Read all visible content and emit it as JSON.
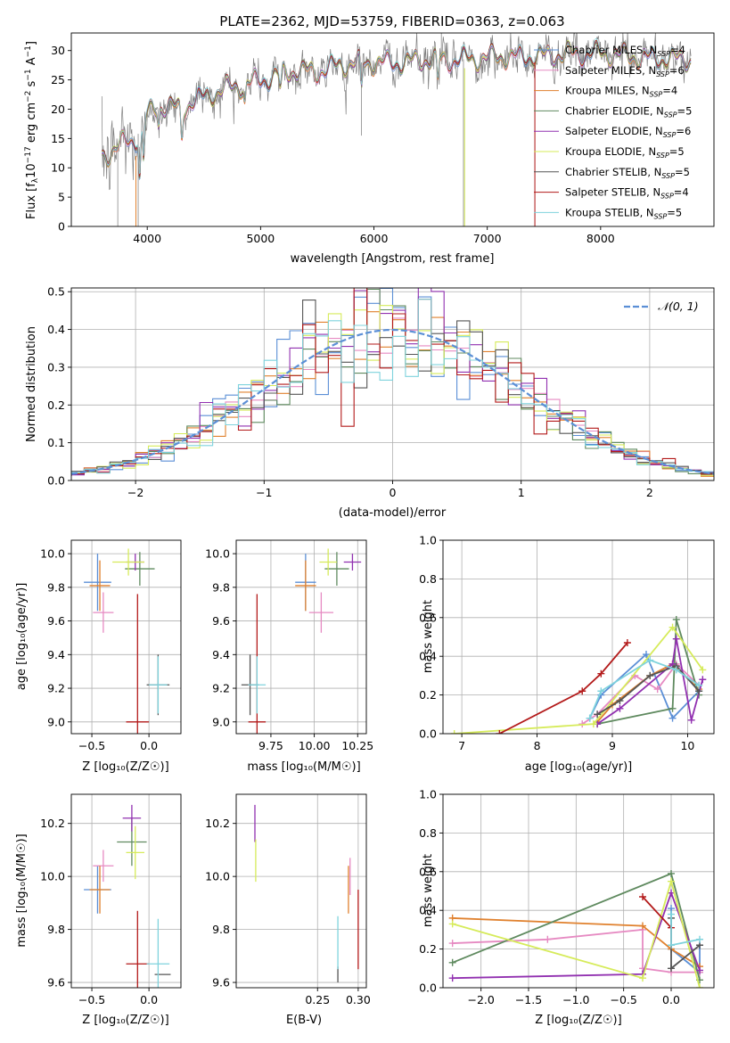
{
  "figure": {
    "title": "PLATE=2362, MJD=53759, FIBERID=0363, z=0.063"
  },
  "colors": {
    "Chabrier MILES": "#5b8fd6",
    "Salpeter MILES": "#e68ac2",
    "Kroupa MILES": "#e0812e",
    "Chabrier ELODIE": "#5f8a5f",
    "Salpeter ELODIE": "#9130b0",
    "Kroupa ELODIE": "#d6eb5a",
    "Chabrier STELIB": "#555555",
    "Salpeter STELIB": "#b31a1a",
    "Kroupa STELIB": "#7fd3dd",
    "data_spectrum": "#808080",
    "normal_curve": "#5b8fd6"
  },
  "panels": {
    "spectrum": {
      "xlabel": "wavelength [Angstrom, rest frame]",
      "ylabel_pre": "Flux [f",
      "ylabel_sub": "λ",
      "ylabel_mid": "10",
      "ylabel_sup1": "−17",
      "ylabel_post": " erg cm",
      "ylabel_sup2": "−2",
      "ylabel_s": " s",
      "ylabel_sup3": "−1",
      "ylabel_A": " A",
      "ylabel_sup4": "−1",
      "ylabel_end": "]"
    },
    "residuals": {
      "xlabel": "(data-model)/error",
      "ylabel": "Normed distribution",
      "legend": "𝒩(0, 1)"
    },
    "age_Z": {
      "xlabel": "Z [log₁₀(Z/Z☉)]",
      "ylabel": "age  [log₁₀(age/yr)]"
    },
    "age_mass": {
      "xlabel": "mass [log₁₀(M/M☉)]"
    },
    "weight_age": {
      "xlabel": "age  [log₁₀(age/yr)]",
      "ylabel": "mass weight"
    },
    "mass_Z": {
      "xlabel": "Z [log₁₀(Z/Z☉)]",
      "ylabel": "mass [log₁₀(M/M☉)]"
    },
    "mass_ebv": {
      "xlabel": "E(B-V)"
    },
    "weight_Z": {
      "xlabel": "Z [log₁₀(Z/Z☉)]",
      "ylabel": "mass weight"
    }
  },
  "legend_entries": [
    {
      "name": "Chabrier MILES",
      "n": "4"
    },
    {
      "name": "Salpeter MILES",
      "n": "6"
    },
    {
      "name": "Kroupa MILES",
      "n": "4"
    },
    {
      "name": "Chabrier ELODIE",
      "n": "5"
    },
    {
      "name": "Salpeter ELODIE",
      "n": "6"
    },
    {
      "name": "Kroupa ELODIE",
      "n": "5"
    },
    {
      "name": "Chabrier STELIB",
      "n": "5"
    },
    {
      "name": "Salpeter STELIB",
      "n": "4"
    },
    {
      "name": "Kroupa STELIB",
      "n": "5"
    }
  ],
  "chart_data": [
    {
      "type": "line",
      "title": "PLATE=2362, MJD=53759, FIBERID=0363, z=0.063",
      "xlabel": "wavelength [Angstrom, rest frame]",
      "ylabel": "Flux [f_λ 10^-17 erg cm^-2 s^-1 A^-1]",
      "xlim": [
        3330,
        9000
      ],
      "ylim": [
        0,
        33
      ],
      "xticks": [
        4000,
        5000,
        6000,
        7000,
        8000
      ],
      "yticks": [
        0,
        5,
        10,
        15,
        20,
        25,
        30
      ],
      "grid": false,
      "legend_position": "right",
      "continuum": {
        "x": [
          3600,
          3700,
          3800,
          3900,
          4000,
          4100,
          4200,
          4300,
          4400,
          4500,
          4700,
          4900,
          5100,
          5300,
          5500,
          5700,
          5900,
          6100,
          6300,
          6500,
          6700,
          6900,
          7100,
          7300,
          7500,
          7700,
          8000,
          8300,
          8600,
          8800
        ],
        "y": [
          12,
          13,
          14.5,
          15,
          19,
          20.5,
          20.5,
          20,
          21.5,
          22,
          23.5,
          24.5,
          25.5,
          26.5,
          26.5,
          27.5,
          28,
          28,
          28,
          28.5,
          28.5,
          28.5,
          29,
          29,
          29,
          29.5,
          29.5,
          29,
          28.5,
          28.5
        ]
      },
      "series": [
        {
          "name": "Chabrier MILES, N_SSP=4"
        },
        {
          "name": "Salpeter MILES, N_SSP=6"
        },
        {
          "name": "Kroupa MILES, N_SSP=4"
        },
        {
          "name": "Chabrier ELODIE, N_SSP=5"
        },
        {
          "name": "Salpeter ELODIE, N_SSP=6"
        },
        {
          "name": "Kroupa ELODIE, N_SSP=5"
        },
        {
          "name": "Chabrier STELIB, N_SSP=5"
        },
        {
          "name": "Salpeter STELIB, N_SSP=4"
        },
        {
          "name": "Kroupa STELIB, N_SSP=5"
        }
      ]
    },
    {
      "type": "line",
      "xlabel": "(data-model)/error",
      "ylabel": "Normed distribution",
      "xlim": [
        -2.5,
        2.5
      ],
      "ylim": [
        0,
        0.51
      ],
      "xticks": [
        -2,
        -1,
        0,
        1,
        2
      ],
      "yticks": [
        0.0,
        0.1,
        0.2,
        0.3,
        0.4,
        0.5
      ],
      "grid": true,
      "legend_position": "top-right",
      "reference_curve": "𝒩(0, 1)",
      "bin_width": 0.1
    },
    {
      "type": "scatter",
      "xlabel": "Z [log₁₀(Z/Z☉)]",
      "ylabel": "age  [log₁₀(age/yr)]",
      "xlim": [
        -0.68,
        0.28
      ],
      "ylim": [
        8.93,
        10.08
      ],
      "xticks": [
        -0.5,
        0.0
      ],
      "yticks": [
        9.0,
        9.2,
        9.4,
        9.6,
        9.8,
        10.0
      ],
      "grid": true,
      "points": [
        {
          "series": "Chabrier MILES",
          "x": -0.45,
          "xerr": 0.12,
          "y": 9.83,
          "yerr": 0.17
        },
        {
          "series": "Salpeter MILES",
          "x": -0.4,
          "xerr": 0.09,
          "y": 9.65,
          "yerr": 0.12
        },
        {
          "series": "Kroupa MILES",
          "x": -0.43,
          "xerr": 0.09,
          "y": 9.81,
          "yerr": 0.15
        },
        {
          "series": "Chabrier ELODIE",
          "x": -0.08,
          "xerr": 0.13,
          "y": 9.91,
          "yerr": 0.1
        },
        {
          "series": "Salpeter ELODIE",
          "x": -0.12,
          "xerr": 0.08,
          "y": 9.95,
          "yerr": 0.05
        },
        {
          "series": "Kroupa ELODIE",
          "x": -0.18,
          "xerr": 0.14,
          "y": 9.95,
          "yerr": 0.08
        },
        {
          "series": "Chabrier STELIB",
          "x": 0.08,
          "xerr": 0.1,
          "y": 9.22,
          "yerr": 0.18
        },
        {
          "series": "Salpeter STELIB",
          "x": -0.1,
          "xerr": 0.1,
          "y": 9.0,
          "yerr": 0.76
        },
        {
          "series": "Kroupa STELIB",
          "x": 0.08,
          "xerr": 0.08,
          "y": 9.22,
          "yerr": 0.17
        }
      ]
    },
    {
      "type": "scatter",
      "xlabel": "mass [log₁₀(M/M☉)]",
      "xlim": [
        9.55,
        10.3
      ],
      "ylim": [
        8.93,
        10.08
      ],
      "xticks": [
        9.75,
        10.0,
        10.25
      ],
      "yticks": [
        9.0,
        9.2,
        9.4,
        9.6,
        9.8,
        10.0
      ],
      "grid": true,
      "points": [
        {
          "series": "Chabrier MILES",
          "x": 9.95,
          "xerr": 0.06,
          "y": 9.83,
          "yerr": 0.17
        },
        {
          "series": "Salpeter MILES",
          "x": 10.04,
          "xerr": 0.07,
          "y": 9.65,
          "yerr": 0.12
        },
        {
          "series": "Kroupa MILES",
          "x": 9.95,
          "xerr": 0.06,
          "y": 9.81,
          "yerr": 0.15
        },
        {
          "series": "Chabrier ELODIE",
          "x": 10.13,
          "xerr": 0.07,
          "y": 9.91,
          "yerr": 0.1
        },
        {
          "series": "Salpeter ELODIE",
          "x": 10.22,
          "xerr": 0.05,
          "y": 9.95,
          "yerr": 0.05
        },
        {
          "series": "Kroupa ELODIE",
          "x": 10.08,
          "xerr": 0.05,
          "y": 9.95,
          "yerr": 0.08
        },
        {
          "series": "Chabrier STELIB",
          "x": 9.63,
          "xerr": 0.05,
          "y": 9.22,
          "yerr": 0.18
        },
        {
          "series": "Salpeter STELIB",
          "x": 9.67,
          "xerr": 0.05,
          "y": 9.0,
          "yerr": 0.76
        },
        {
          "series": "Kroupa STELIB",
          "x": 9.67,
          "xerr": 0.05,
          "y": 9.22,
          "yerr": 0.17
        }
      ]
    },
    {
      "type": "line",
      "xlabel": "age  [log₁₀(age/yr)]",
      "ylabel": "mass weight",
      "xlim": [
        6.75,
        10.35
      ],
      "ylim": [
        0,
        1
      ],
      "xticks": [
        7,
        8,
        9,
        10
      ],
      "yticks": [
        0.0,
        0.2,
        0.4,
        0.6,
        0.8,
        1.0
      ],
      "grid": true,
      "series": [
        {
          "name": "Chabrier MILES",
          "x": [
            8.7,
            8.85,
            9.45,
            9.8,
            10.15
          ],
          "y": [
            0.08,
            0.2,
            0.41,
            0.08,
            0.22
          ]
        },
        {
          "name": "Salpeter MILES",
          "x": [
            8.6,
            8.8,
            9.3,
            9.6,
            9.85,
            10.15
          ],
          "y": [
            0.05,
            0.1,
            0.3,
            0.23,
            0.36,
            0.25
          ]
        },
        {
          "name": "Kroupa MILES",
          "x": [
            8.8,
            9.0,
            9.5,
            9.8,
            10.15
          ],
          "y": [
            0.06,
            0.15,
            0.3,
            0.36,
            0.23
          ]
        },
        {
          "name": "Chabrier ELODIE",
          "x": [
            8.8,
            9.8,
            9.85,
            10.15
          ],
          "y": [
            0.05,
            0.13,
            0.59,
            0.2
          ]
        },
        {
          "name": "Salpeter ELODIE",
          "x": [
            8.8,
            9.1,
            9.8,
            9.85,
            10.05,
            10.2
          ],
          "y": [
            0.05,
            0.13,
            0.36,
            0.49,
            0.07,
            0.28
          ]
        },
        {
          "name": "Kroupa ELODIE",
          "x": [
            6.9,
            8.75,
            9.8,
            10.2
          ],
          "y": [
            0.0,
            0.05,
            0.55,
            0.33
          ]
        },
        {
          "name": "Chabrier STELIB",
          "x": [
            8.8,
            9.1,
            9.5,
            9.85,
            10.15
          ],
          "y": [
            0.1,
            0.17,
            0.3,
            0.35,
            0.22
          ]
        },
        {
          "name": "Salpeter STELIB",
          "x": [
            7.5,
            8.6,
            8.85,
            9.2
          ],
          "y": [
            0.0,
            0.22,
            0.31,
            0.47
          ]
        },
        {
          "name": "Kroupa STELIB",
          "x": [
            8.7,
            8.85,
            9.5,
            9.85,
            10.15
          ],
          "y": [
            0.08,
            0.22,
            0.38,
            0.33,
            0.25
          ]
        }
      ]
    },
    {
      "type": "scatter",
      "xlabel": "Z [log₁₀(Z/Z☉)]",
      "ylabel": "mass [log₁₀(M/M☉)]",
      "xlim": [
        -0.68,
        0.28
      ],
      "ylim": [
        9.58,
        10.31
      ],
      "xticks": [
        -0.5,
        0.0
      ],
      "yticks": [
        9.6,
        9.8,
        10.0,
        10.2
      ],
      "grid": true,
      "points": [
        {
          "series": "Chabrier MILES",
          "x": -0.45,
          "xerr": 0.12,
          "y": 9.95,
          "yerr": 0.09
        },
        {
          "series": "Salpeter MILES",
          "x": -0.4,
          "xerr": 0.09,
          "y": 10.04,
          "yerr": 0.06
        },
        {
          "series": "Kroupa MILES",
          "x": -0.43,
          "xerr": 0.09,
          "y": 9.95,
          "yerr": 0.09
        },
        {
          "series": "Chabrier ELODIE",
          "x": -0.15,
          "xerr": 0.13,
          "y": 10.13,
          "yerr": 0.09
        },
        {
          "series": "Salpeter ELODIE",
          "x": -0.15,
          "xerr": 0.08,
          "y": 10.22,
          "yerr": 0.05
        },
        {
          "series": "Kroupa ELODIE",
          "x": -0.12,
          "xerr": 0.08,
          "y": 10.09,
          "yerr": 0.1
        },
        {
          "series": "Chabrier STELIB",
          "x": 0.12,
          "xerr": 0.07,
          "y": 9.63,
          "yerr": 0.0
        },
        {
          "series": "Salpeter STELIB",
          "x": -0.1,
          "xerr": 0.1,
          "y": 9.67,
          "yerr": 0.2
        },
        {
          "series": "Kroupa STELIB",
          "x": 0.08,
          "xerr": 0.1,
          "y": 9.67,
          "yerr": 0.17
        }
      ]
    },
    {
      "type": "scatter",
      "xlabel": "E(B-V)",
      "xlim": [
        0.15,
        0.31
      ],
      "ylim": [
        9.58,
        10.31
      ],
      "xticks": [
        0.25,
        0.3
      ],
      "yticks": [
        9.6,
        9.8,
        10.0,
        10.2
      ],
      "grid": true,
      "points": [
        {
          "series": "Salpeter ELODIE",
          "x": 0.173,
          "y": 10.2,
          "yerr": 0.07
        },
        {
          "series": "Kroupa ELODIE",
          "x": 0.174,
          "y": 10.06,
          "yerr": 0.08
        },
        {
          "series": "Chabrier STELIB",
          "x": 0.275,
          "y": 9.63,
          "yerr": 0.03
        },
        {
          "series": "Kroupa STELIB",
          "x": 0.275,
          "y": 9.75,
          "yerr": 0.1
        },
        {
          "series": "Kroupa MILES",
          "x": 0.288,
          "y": 9.95,
          "yerr": 0.09
        },
        {
          "series": "Salpeter MILES",
          "x": 0.29,
          "y": 10.0,
          "yerr": 0.07
        },
        {
          "series": "Salpeter STELIB",
          "x": 0.3,
          "y": 9.8,
          "yerr": 0.15
        }
      ]
    },
    {
      "type": "line",
      "xlabel": "Z [log₁₀(Z/Z☉)]",
      "ylabel": "mass weight",
      "xlim": [
        -2.4,
        0.45
      ],
      "ylim": [
        0,
        1
      ],
      "xticks": [
        -2.0,
        -1.5,
        -1.0,
        -0.5,
        0.0
      ],
      "yticks": [
        0.0,
        0.2,
        0.4,
        0.6,
        0.8,
        1.0
      ],
      "grid": true,
      "series": [
        {
          "name": "Chabrier MILES",
          "x": [
            0.0,
            0.0,
            0.3,
            0.3
          ],
          "y": [
            0.41,
            0.2,
            0.08,
            0.22
          ]
        },
        {
          "name": "Salpeter MILES",
          "x": [
            -2.3,
            -1.3,
            -0.3,
            -0.3,
            0.0,
            0.3
          ],
          "y": [
            0.23,
            0.25,
            0.3,
            0.1,
            0.08,
            0.08
          ]
        },
        {
          "name": "Kroupa MILES",
          "x": [
            -2.3,
            -0.3,
            0.0,
            0.3
          ],
          "y": [
            0.36,
            0.32,
            0.2,
            0.11
          ]
        },
        {
          "name": "Chabrier ELODIE",
          "x": [
            -2.3,
            0.0,
            0.3
          ],
          "y": [
            0.13,
            0.59,
            0.04
          ]
        },
        {
          "name": "Salpeter ELODIE",
          "x": [
            -2.3,
            -0.3,
            0.0,
            0.3
          ],
          "y": [
            0.05,
            0.07,
            0.49,
            0.09
          ]
        },
        {
          "name": "Kroupa ELODIE",
          "x": [
            -2.3,
            -0.3,
            0.0,
            0.3
          ],
          "y": [
            0.33,
            0.05,
            0.55,
            0.0
          ]
        },
        {
          "name": "Chabrier STELIB",
          "x": [
            0.0,
            0.0,
            0.3
          ],
          "y": [
            0.36,
            0.1,
            0.22
          ]
        },
        {
          "name": "Salpeter STELIB",
          "x": [
            -0.3,
            0.0,
            0.0
          ],
          "y": [
            0.47,
            0.31,
            0.22
          ]
        },
        {
          "name": "Kroupa STELIB",
          "x": [
            0.0,
            0.0,
            0.3
          ],
          "y": [
            0.38,
            0.22,
            0.25
          ]
        }
      ]
    }
  ]
}
